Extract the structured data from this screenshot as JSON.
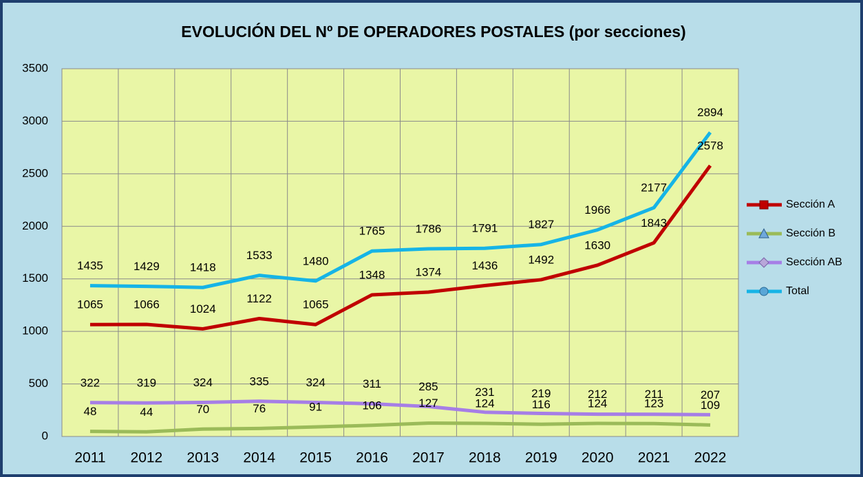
{
  "chart_data": {
    "type": "line",
    "title": "EVOLUCIÓN DEL Nº DE OPERADORES POSTALES (por secciones)",
    "categories": [
      "2011",
      "2012",
      "2013",
      "2014",
      "2015",
      "2016",
      "2017",
      "2018",
      "2019",
      "2020",
      "2021",
      "2022"
    ],
    "series": [
      {
        "name": "Sección A",
        "color": "#c00000",
        "marker": "square",
        "values": [
          1065,
          1066,
          1024,
          1122,
          1065,
          1348,
          1374,
          1436,
          1492,
          1630,
          1843,
          2578
        ]
      },
      {
        "name": "Sección B",
        "color": "#9bbb59",
        "marker": "triangle",
        "values": [
          48,
          44,
          70,
          76,
          91,
          106,
          127,
          124,
          116,
          124,
          123,
          109
        ]
      },
      {
        "name": "Sección AB",
        "color": "#a67ee6",
        "marker": "diamond",
        "values": [
          322,
          319,
          324,
          335,
          324,
          311,
          285,
          231,
          219,
          212,
          211,
          207
        ]
      },
      {
        "name": "Total",
        "color": "#16b4e6",
        "marker": "circle",
        "values": [
          1435,
          1429,
          1418,
          1533,
          1480,
          1765,
          1786,
          1791,
          1827,
          1966,
          2177,
          2894
        ]
      }
    ],
    "ylim": [
      0,
      3500
    ],
    "yticks": [
      0,
      500,
      1000,
      1500,
      2000,
      2500,
      3000,
      3500
    ],
    "grid": true,
    "legend": "right"
  }
}
